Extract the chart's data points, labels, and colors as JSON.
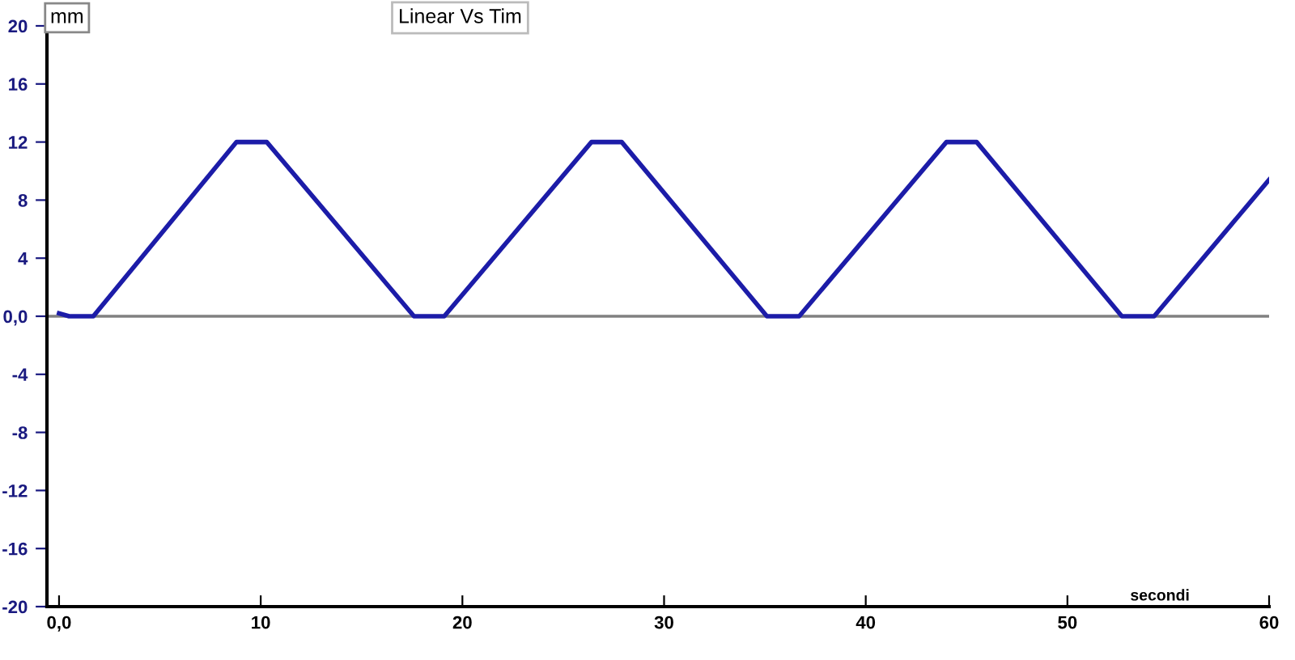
{
  "chart_data": {
    "type": "line",
    "title": "Linear Vs Tim",
    "ylabel": "mm",
    "xlabel": "secondi",
    "x": [
      0,
      0.5,
      1.7,
      8.8,
      10.3,
      17.6,
      19.1,
      26.4,
      27.9,
      35.1,
      36.7,
      44.0,
      45.5,
      52.7,
      54.3,
      60
    ],
    "series": [
      {
        "color": "#1c1ca8",
        "values": [
          0.2,
          0,
          0,
          12,
          12,
          0,
          0,
          12,
          12,
          0,
          0,
          12,
          12,
          0,
          0,
          9.4
        ]
      }
    ],
    "xlim": [
      -0.6,
      60
    ],
    "ylim": [
      -20,
      20
    ],
    "xticks": [
      {
        "value": 0,
        "label": "0,0"
      },
      10,
      20,
      30,
      40,
      50,
      60
    ],
    "yticks": [
      -20,
      -16,
      -12,
      -8,
      -4,
      {
        "value": 0,
        "label": "0,0"
      },
      4,
      8,
      12,
      16,
      20
    ],
    "ref_lines": [
      {
        "axis": "y",
        "value": 0,
        "color": "#808080"
      }
    ],
    "grid": false,
    "legend": false,
    "marker": "none",
    "line_style": "solid"
  }
}
